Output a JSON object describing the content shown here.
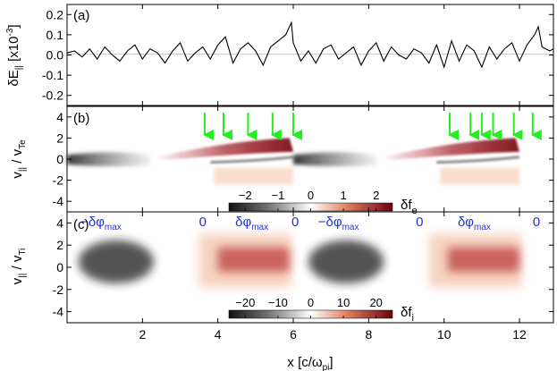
{
  "figure": {
    "panel_labels": [
      "(a)",
      "(b)",
      "(c)"
    ],
    "xlabel": "x [c/ω",
    "xlabel_sub": "pi",
    "xlabel_tail": "]"
  },
  "chart_data": [
    {
      "type": "line",
      "panel": "(a)",
      "ylabel": "δE",
      "ylabel_sub": "||",
      "ylabel_unit": " [x10",
      "ylabel_exp": "-3",
      "ylabel_tail": "]",
      "xlim": [
        0,
        12.9
      ],
      "ylim": [
        -0.25,
        0.25
      ],
      "yticks": [
        0.2,
        0.1,
        0.0,
        -0.1,
        -0.2
      ],
      "ytick_labels": [
        "0.2",
        "0.1",
        "0.0",
        "-0.1",
        "-0.2"
      ],
      "color": "#000000",
      "x": [
        0.0,
        0.2,
        0.4,
        0.6,
        0.8,
        1.0,
        1.2,
        1.4,
        1.6,
        1.8,
        2.0,
        2.2,
        2.4,
        2.6,
        2.8,
        3.0,
        3.2,
        3.4,
        3.6,
        3.8,
        4.0,
        4.2,
        4.4,
        4.6,
        4.8,
        5.0,
        5.2,
        5.4,
        5.6,
        5.8,
        5.95,
        6.0,
        6.2,
        6.4,
        6.6,
        6.8,
        7.0,
        7.2,
        7.4,
        7.6,
        7.8,
        8.0,
        8.2,
        8.4,
        8.6,
        8.8,
        9.0,
        9.2,
        9.4,
        9.6,
        9.8,
        10.0,
        10.2,
        10.4,
        10.6,
        10.8,
        11.0,
        11.2,
        11.4,
        11.6,
        11.8,
        12.0,
        12.2,
        12.4,
        12.5,
        12.6,
        12.8,
        12.9
      ],
      "y": [
        0.01,
        0.02,
        -0.01,
        0.03,
        -0.02,
        0.04,
        0.0,
        -0.03,
        0.02,
        0.05,
        -0.02,
        0.03,
        0.01,
        -0.04,
        0.02,
        0.06,
        -0.03,
        0.01,
        0.04,
        -0.02,
        0.05,
        0.09,
        -0.04,
        0.03,
        0.06,
        0.02,
        -0.05,
        0.04,
        0.07,
        0.1,
        0.16,
        0.06,
        -0.03,
        0.02,
        -0.04,
        0.03,
        0.05,
        -0.02,
        0.01,
        0.04,
        -0.05,
        0.02,
        0.06,
        -0.03,
        0.04,
        0.0,
        -0.02,
        0.03,
        0.01,
        -0.04,
        0.05,
        -0.06,
        0.07,
        -0.03,
        0.05,
        0.02,
        -0.06,
        0.04,
        -0.02,
        0.03,
        0.06,
        -0.03,
        0.05,
        0.1,
        0.14,
        0.04,
        0.02,
        0.03
      ]
    },
    {
      "type": "heatmap",
      "panel": "(b)",
      "ylabel": "v",
      "ylabel_sub": "||",
      "ylabel_mid": " / v",
      "ylabel_sub2": "Te",
      "xlim": [
        0,
        12.9
      ],
      "ylim": [
        -5,
        5
      ],
      "yticks": [
        4,
        2,
        0,
        -2,
        -4
      ],
      "ytick_labels": [
        "4",
        "2",
        "0",
        "-2",
        "-4"
      ],
      "colorbar": {
        "label": "δf",
        "label_sub": "e",
        "ticks": [
          -2,
          -1,
          0,
          1,
          2
        ],
        "tick_labels": [
          "−2",
          "−1",
          "0",
          "1",
          "2"
        ],
        "range": [
          -2.5,
          2.5
        ]
      },
      "markers": {
        "name": "green arrows",
        "color": "#22ee22",
        "x": [
          3.65,
          4.15,
          4.8,
          5.45,
          6.0,
          10.15,
          10.7,
          11.0,
          11.3,
          11.85,
          12.35
        ]
      }
    },
    {
      "type": "heatmap",
      "panel": "(c)",
      "ylabel": "v",
      "ylabel_sub": "||",
      "ylabel_mid": " / v",
      "ylabel_sub2": "Ti",
      "xlim": [
        0,
        12.9
      ],
      "ylim": [
        -5,
        5
      ],
      "yticks": [
        4,
        2,
        0,
        -2,
        -4
      ],
      "ytick_labels": [
        "4",
        "2",
        "0",
        "-2",
        "-4"
      ],
      "colorbar": {
        "label": "δf",
        "label_sub": "i",
        "ticks": [
          -20,
          -10,
          0,
          10,
          20
        ],
        "tick_labels": [
          "−20",
          "−10",
          "0",
          "10",
          "20"
        ],
        "range": [
          -25,
          25
        ]
      },
      "phase_annotations": {
        "color": "#2233cc",
        "items": [
          {
            "x": 0.9,
            "prefix": "−",
            "text": "δφ",
            "sub": "max"
          },
          {
            "x": 3.6,
            "prefix": "",
            "text": "0",
            "sub": ""
          },
          {
            "x": 4.9,
            "prefix": "",
            "text": "δφ",
            "sub": "max"
          },
          {
            "x": 6.05,
            "prefix": "",
            "text": "0",
            "sub": ""
          },
          {
            "x": 7.2,
            "prefix": "−",
            "text": "δφ",
            "sub": "max"
          },
          {
            "x": 9.35,
            "prefix": "",
            "text": "0",
            "sub": ""
          },
          {
            "x": 10.8,
            "prefix": "",
            "text": "δφ",
            "sub": "max"
          },
          {
            "x": 12.45,
            "prefix": "",
            "text": "0",
            "sub": ""
          }
        ]
      }
    }
  ],
  "shared_x": {
    "xticks": [
      2,
      4,
      6,
      8,
      10,
      12
    ],
    "xtick_labels": [
      "2",
      "4",
      "6",
      "8",
      "10",
      "12"
    ]
  }
}
